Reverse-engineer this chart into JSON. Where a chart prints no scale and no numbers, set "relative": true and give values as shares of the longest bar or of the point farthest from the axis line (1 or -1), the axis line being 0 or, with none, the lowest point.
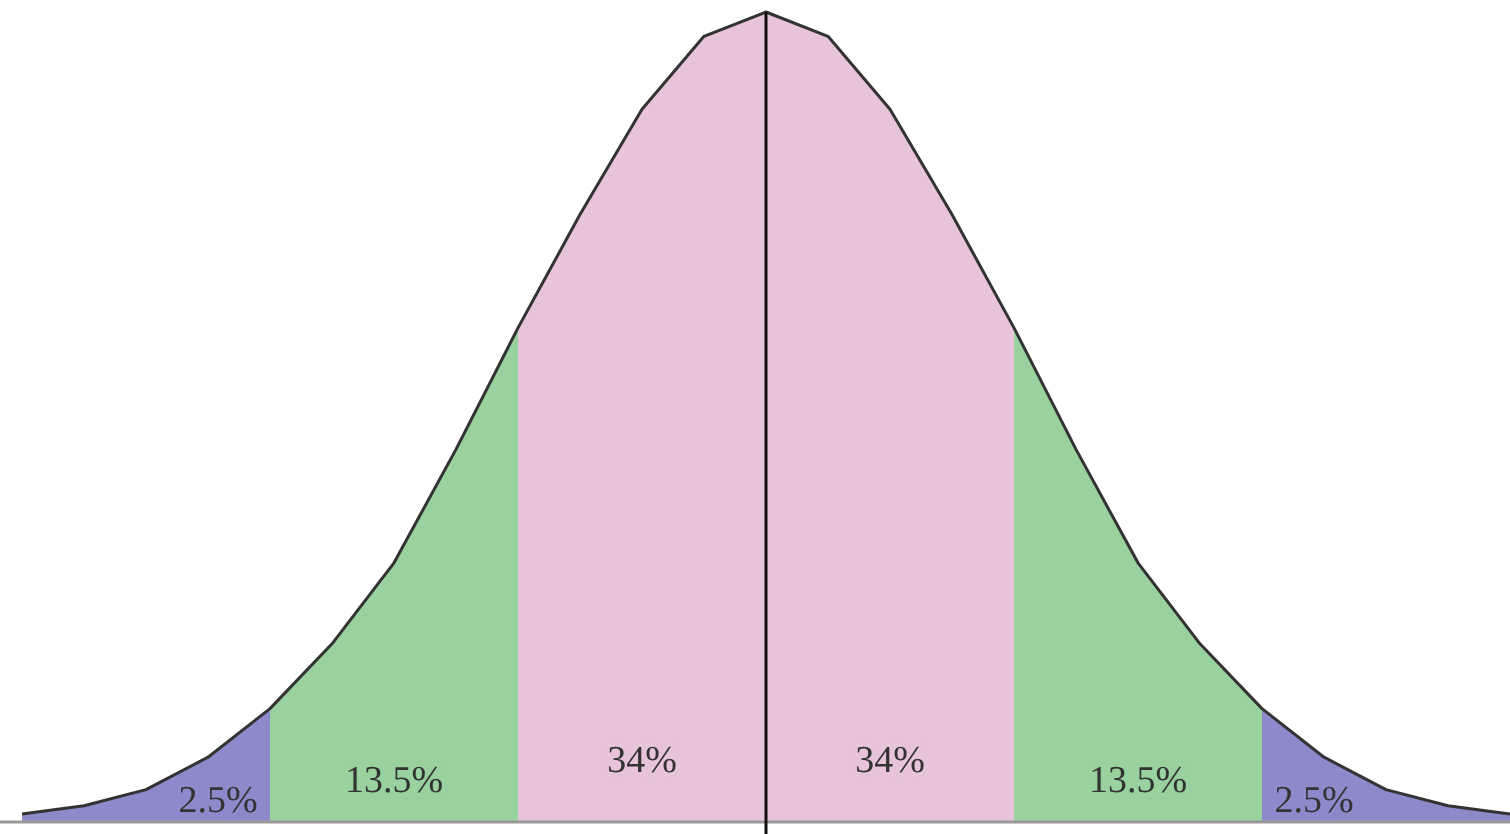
{
  "chart_data": {
    "type": "area",
    "relative": true,
    "categories": [
      null,
      null,
      null,
      null,
      null,
      null,
      null,
      null,
      null,
      null,
      null,
      null,
      null,
      null,
      null,
      null,
      null,
      null,
      null,
      null,
      null,
      null,
      null,
      null,
      null
    ],
    "series": [
      {
        "color": "#8c8acb",
        "values": [
          0.01,
          0.02,
          0.04,
          0.08,
          0.14,
          null,
          null,
          null,
          null,
          null,
          null,
          null,
          null,
          null,
          null,
          null,
          null,
          null,
          null,
          null,
          null,
          null,
          null,
          null,
          null
        ]
      },
      {
        "color": "#99d19f",
        "values": [
          null,
          null,
          null,
          null,
          0.14,
          0.22,
          0.32,
          0.46,
          0.61,
          null,
          null,
          null,
          null,
          null,
          null,
          null,
          null,
          null,
          null,
          null,
          null,
          null,
          null,
          null,
          null
        ]
      },
      {
        "color": "#e7c3dc",
        "values": [
          null,
          null,
          null,
          null,
          null,
          null,
          null,
          null,
          0.61,
          0.75,
          0.88,
          0.97,
          1,
          null,
          null,
          null,
          null,
          null,
          null,
          null,
          null,
          null,
          null,
          null,
          null
        ]
      },
      {
        "color": "#e7c3dc",
        "values": [
          null,
          null,
          null,
          null,
          null,
          null,
          null,
          null,
          null,
          null,
          null,
          null,
          1,
          0.97,
          0.88,
          0.75,
          0.61,
          null,
          null,
          null,
          null,
          null,
          null,
          null,
          null
        ]
      },
      {
        "color": "#99d19f",
        "values": [
          null,
          null,
          null,
          null,
          null,
          null,
          null,
          null,
          null,
          null,
          null,
          null,
          null,
          null,
          null,
          null,
          0.61,
          0.46,
          0.32,
          0.22,
          0.14,
          null,
          null,
          null,
          null
        ]
      },
      {
        "color": "#8c8acb",
        "values": [
          null,
          null,
          null,
          null,
          null,
          null,
          null,
          null,
          null,
          null,
          null,
          null,
          null,
          null,
          null,
          null,
          null,
          null,
          null,
          null,
          0.14,
          0.08,
          0.04,
          0.02,
          0.01
        ]
      },
      {
        "type": "line",
        "color": "#333333",
        "values": [
          0.01,
          0.02,
          0.04,
          0.08,
          0.14,
          0.22,
          0.32,
          0.46,
          0.61,
          0.75,
          0.88,
          0.97,
          1,
          0.97,
          0.88,
          0.75,
          0.61,
          0.46,
          0.32,
          0.22,
          0.14,
          0.08,
          0.04,
          0.02,
          0.01
        ]
      }
    ],
    "annotations": [
      "2.5%",
      "13.5%",
      "34%",
      "34%",
      "13.5%",
      "2.5%"
    ]
  }
}
